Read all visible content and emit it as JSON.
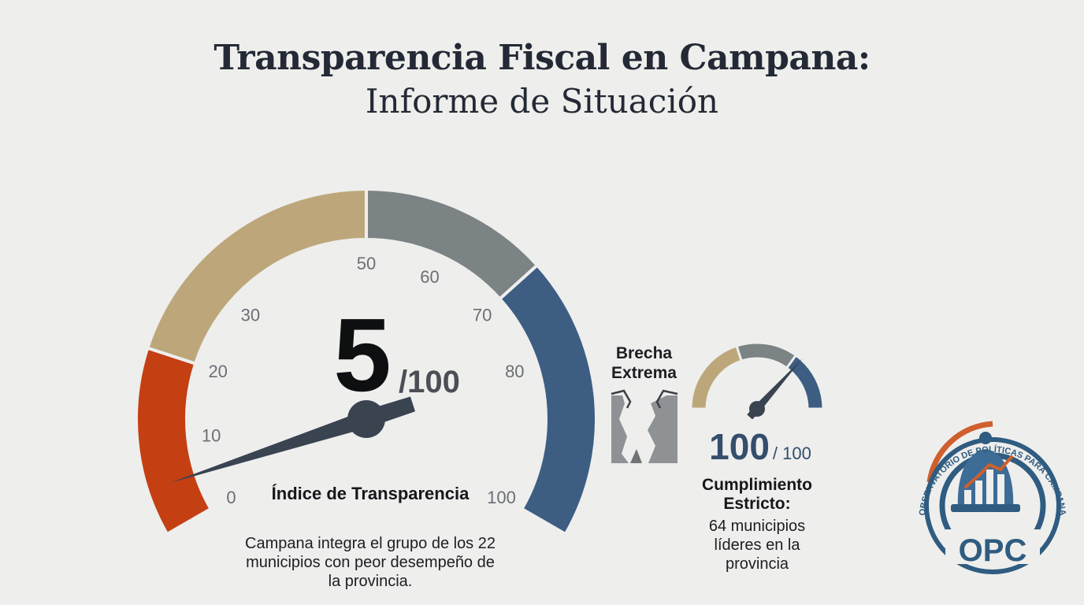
{
  "header": {
    "title": "Transparencia Fiscal en Campana:",
    "subtitle": "Informe de Situación"
  },
  "colors": {
    "band_low": "#c43f12",
    "band_lowmid": "#bda77a",
    "band_mid": "#7b8385",
    "band_high": "#3d5e82",
    "needle": "#3a4350",
    "gap": "#8e9294"
  },
  "chart_data": [
    {
      "type": "gauge",
      "label": "Índice de Transparencia",
      "value": 5,
      "value_text": "5",
      "max_text": "/100",
      "range": [
        0,
        100
      ],
      "ticks": [
        "0",
        "10",
        "20",
        "30",
        "50",
        "60",
        "70",
        "80",
        "100"
      ],
      "bands": [
        {
          "from": 0,
          "to": 20,
          "color": "#c43f12"
        },
        {
          "from": 20,
          "to": 50,
          "color": "#bda77a"
        },
        {
          "from": 50,
          "to": 70,
          "color": "#7b8385"
        },
        {
          "from": 70,
          "to": 100,
          "color": "#3d5e82"
        }
      ],
      "description": "Campana integra el grupo de los 22 municipios con peor desempeño de la provincia."
    },
    {
      "type": "gauge",
      "value": 100,
      "value_text": "100",
      "max_text": "/ 100",
      "range": [
        0,
        100
      ],
      "caption": "Cumplimiento Estricto:",
      "description": "64 municipios líderes en la provincia"
    }
  ],
  "gap": {
    "label": "Brecha Extrema",
    "icon": "cracked-chasm-icon"
  },
  "logo": {
    "text": "OPC",
    "ring_text": "OBSERVATORIO DE POLÍTICAS PARA CAMPANA",
    "icon": "bell-bar-chart-icon"
  }
}
